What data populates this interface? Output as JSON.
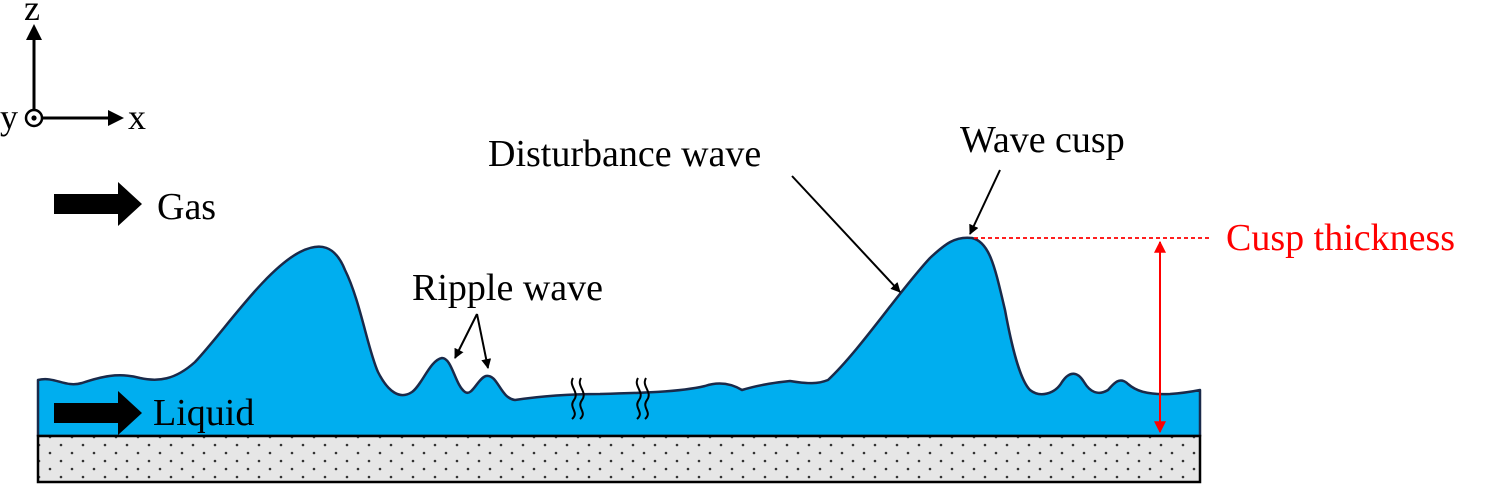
{
  "axes": {
    "z": "z",
    "x": "x",
    "y": "y"
  },
  "labels": {
    "gas": "Gas",
    "liquid": "Liquid",
    "ripple_wave": "Ripple wave",
    "disturbance_wave": "Disturbance wave",
    "wave_cusp": "Wave cusp",
    "cusp_thickness": "Cusp thickness"
  },
  "colors": {
    "liquid_fill": "#00AEEF",
    "outline": "#1a2a4a",
    "annotation_red": "#ff0000",
    "wall_fill": "#e6e6e6",
    "wall_dots": "#333333"
  },
  "icons": {
    "flow_arrow": "block-right-arrow",
    "axis_y_out_of_page": "dot-in-circle",
    "wavy_break": "double-wavy-line"
  }
}
